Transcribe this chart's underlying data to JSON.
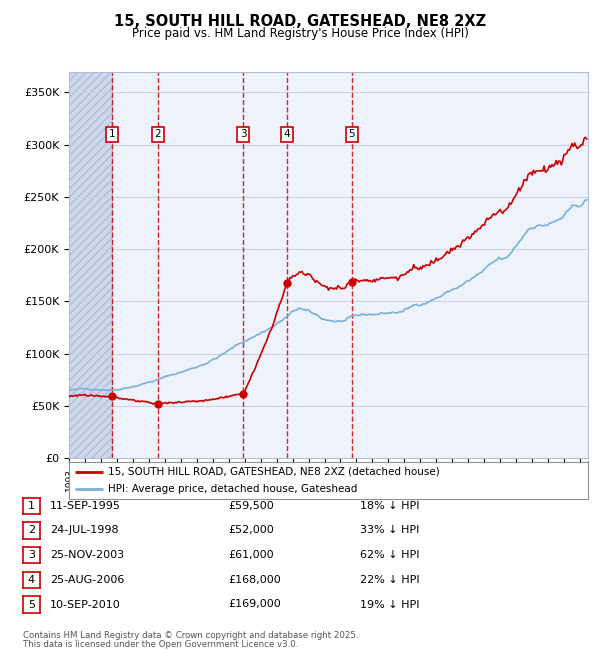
{
  "title": "15, SOUTH HILL ROAD, GATESHEAD, NE8 2XZ",
  "subtitle": "Price paid vs. HM Land Registry's House Price Index (HPI)",
  "ylabel_ticks": [
    "£0",
    "£50K",
    "£100K",
    "£150K",
    "£200K",
    "£250K",
    "£300K",
    "£350K"
  ],
  "ytick_values": [
    0,
    50000,
    100000,
    150000,
    200000,
    250000,
    300000,
    350000
  ],
  "ylim": [
    0,
    370000
  ],
  "xlim_start": 1993.0,
  "xlim_end": 2025.5,
  "transactions": [
    {
      "num": 1,
      "date": "11-SEP-1995",
      "price": 59500,
      "year": 1995.7,
      "pct": "18%",
      "dir": "↓"
    },
    {
      "num": 2,
      "date": "24-JUL-1998",
      "price": 52000,
      "year": 1998.55,
      "pct": "33%",
      "dir": "↓"
    },
    {
      "num": 3,
      "date": "25-NOV-2003",
      "price": 61000,
      "year": 2003.9,
      "pct": "62%",
      "dir": "↓"
    },
    {
      "num": 4,
      "date": "25-AUG-2006",
      "price": 168000,
      "year": 2006.65,
      "pct": "22%",
      "dir": "↓"
    },
    {
      "num": 5,
      "date": "10-SEP-2010",
      "price": 169000,
      "year": 2010.7,
      "pct": "19%",
      "dir": "↓"
    }
  ],
  "legend_line1": "15, SOUTH HILL ROAD, GATESHEAD, NE8 2XZ (detached house)",
  "legend_line2": "HPI: Average price, detached house, Gateshead",
  "footer1": "Contains HM Land Registry data © Crown copyright and database right 2025.",
  "footer2": "This data is licensed under the Open Government Licence v3.0.",
  "hpi_color": "#7bafd4",
  "price_color": "#cc0000",
  "plot_bg_color": "#eef2fb",
  "hatch_color": "#d0d8ee"
}
